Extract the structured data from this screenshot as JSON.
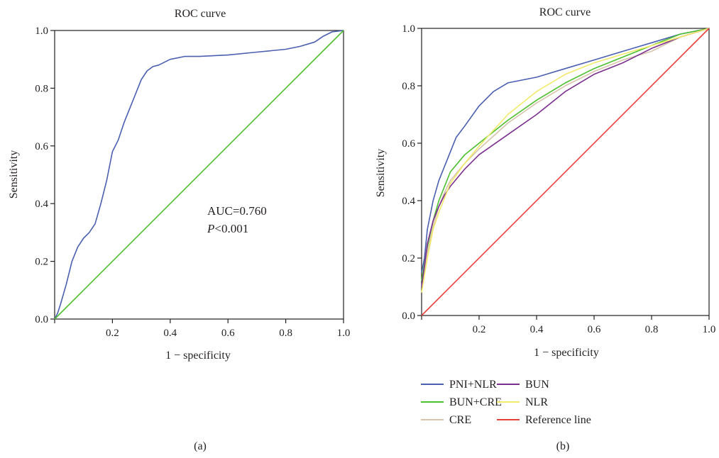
{
  "chart_data": [
    {
      "type": "line",
      "panel_label": "(a)",
      "title": "ROC curve",
      "xlabel": "1 − specificity",
      "ylabel": "Sensitivity",
      "xlim": [
        0,
        1
      ],
      "ylim": [
        0,
        1
      ],
      "x_ticks": [
        "0.2",
        "0.4",
        "0.6",
        "0.8",
        "1.0"
      ],
      "y_ticks": [
        "0.0",
        "0.2",
        "0.4",
        "0.6",
        "0.8",
        "1.0"
      ],
      "grid": false,
      "annotations": [
        {
          "text": "AUC=0.760"
        },
        {
          "italic": "P",
          "text": "<0.001"
        }
      ],
      "series": [
        {
          "color": "#4a5fb0",
          "x": [
            0,
            0.01,
            0.02,
            0.04,
            0.06,
            0.08,
            0.1,
            0.12,
            0.14,
            0.16,
            0.18,
            0.2,
            0.22,
            0.24,
            0.26,
            0.28,
            0.3,
            0.32,
            0.34,
            0.36,
            0.4,
            0.45,
            0.5,
            0.6,
            0.7,
            0.8,
            0.85,
            0.9,
            0.93,
            0.96,
            1.0
          ],
          "y": [
            0,
            0.02,
            0.05,
            0.12,
            0.2,
            0.25,
            0.28,
            0.3,
            0.33,
            0.4,
            0.48,
            0.58,
            0.62,
            0.68,
            0.73,
            0.78,
            0.83,
            0.86,
            0.875,
            0.88,
            0.9,
            0.91,
            0.91,
            0.915,
            0.925,
            0.935,
            0.945,
            0.96,
            0.98,
            0.995,
            1.0
          ]
        },
        {
          "color": "#4cc02e",
          "x": [
            0,
            1
          ],
          "y": [
            0,
            1
          ]
        }
      ]
    },
    {
      "type": "line",
      "panel_label": "(b)",
      "title": "ROC curve",
      "xlabel": "1 − specificity",
      "ylabel": "Sensitivity",
      "xlim": [
        0,
        1
      ],
      "ylim": [
        0,
        1
      ],
      "x_ticks": [
        "0.2",
        "0.4",
        "0.6",
        "0.8",
        "1.0"
      ],
      "y_ticks": [
        "0.0",
        "0.2",
        "0.4",
        "0.6",
        "0.8",
        "1.0"
      ],
      "grid": false,
      "legend_position": "bottom",
      "series": [
        {
          "name": "PNI+NLR",
          "color": "#4a5fb0",
          "x": [
            0,
            0.01,
            0.02,
            0.04,
            0.06,
            0.08,
            0.1,
            0.12,
            0.15,
            0.2,
            0.25,
            0.3,
            0.4,
            0.5,
            0.6,
            0.7,
            0.8,
            0.9,
            1.0
          ],
          "y": [
            0.15,
            0.2,
            0.3,
            0.4,
            0.47,
            0.52,
            0.57,
            0.62,
            0.66,
            0.73,
            0.78,
            0.81,
            0.83,
            0.86,
            0.89,
            0.92,
            0.95,
            0.98,
            1.0
          ]
        },
        {
          "name": "BUN+CRE",
          "color": "#4cc02e",
          "x": [
            0,
            0.01,
            0.02,
            0.04,
            0.06,
            0.08,
            0.1,
            0.15,
            0.2,
            0.3,
            0.4,
            0.5,
            0.6,
            0.7,
            0.8,
            0.9,
            1.0
          ],
          "y": [
            0.12,
            0.18,
            0.24,
            0.33,
            0.4,
            0.45,
            0.5,
            0.56,
            0.6,
            0.68,
            0.75,
            0.81,
            0.86,
            0.9,
            0.94,
            0.98,
            1.0
          ]
        },
        {
          "name": "CRE",
          "color": "#d6c4ac",
          "x": [
            0,
            0.01,
            0.02,
            0.04,
            0.06,
            0.08,
            0.1,
            0.15,
            0.2,
            0.3,
            0.4,
            0.5,
            0.6,
            0.7,
            0.8,
            0.9,
            1.0
          ],
          "y": [
            0.1,
            0.15,
            0.22,
            0.31,
            0.38,
            0.43,
            0.47,
            0.53,
            0.58,
            0.67,
            0.74,
            0.8,
            0.85,
            0.89,
            0.92,
            0.97,
            1.0
          ]
        },
        {
          "name": "BUN",
          "color": "#7b2f8e",
          "x": [
            0,
            0.01,
            0.02,
            0.04,
            0.06,
            0.08,
            0.1,
            0.15,
            0.2,
            0.3,
            0.4,
            0.5,
            0.6,
            0.7,
            0.8,
            0.9,
            1.0
          ],
          "y": [
            0.1,
            0.17,
            0.25,
            0.33,
            0.38,
            0.42,
            0.45,
            0.51,
            0.56,
            0.63,
            0.7,
            0.78,
            0.84,
            0.88,
            0.93,
            0.97,
            1.0
          ]
        },
        {
          "name": "NLR",
          "color": "#f2ea6a",
          "x": [
            0,
            0.01,
            0.02,
            0.04,
            0.06,
            0.08,
            0.1,
            0.15,
            0.2,
            0.3,
            0.4,
            0.5,
            0.6,
            0.7,
            0.8,
            0.9,
            1.0
          ],
          "y": [
            0.08,
            0.14,
            0.2,
            0.3,
            0.36,
            0.41,
            0.46,
            0.53,
            0.59,
            0.7,
            0.78,
            0.84,
            0.88,
            0.91,
            0.94,
            0.97,
            1.0
          ]
        },
        {
          "name": "Reference line",
          "color": "#e8403c",
          "x": [
            0,
            1
          ],
          "y": [
            0,
            1
          ]
        }
      ],
      "legend_layout": [
        [
          "PNI+NLR",
          "BUN"
        ],
        [
          "BUN+CRE",
          "NLR"
        ],
        [
          "CRE",
          "Reference line"
        ]
      ]
    }
  ]
}
